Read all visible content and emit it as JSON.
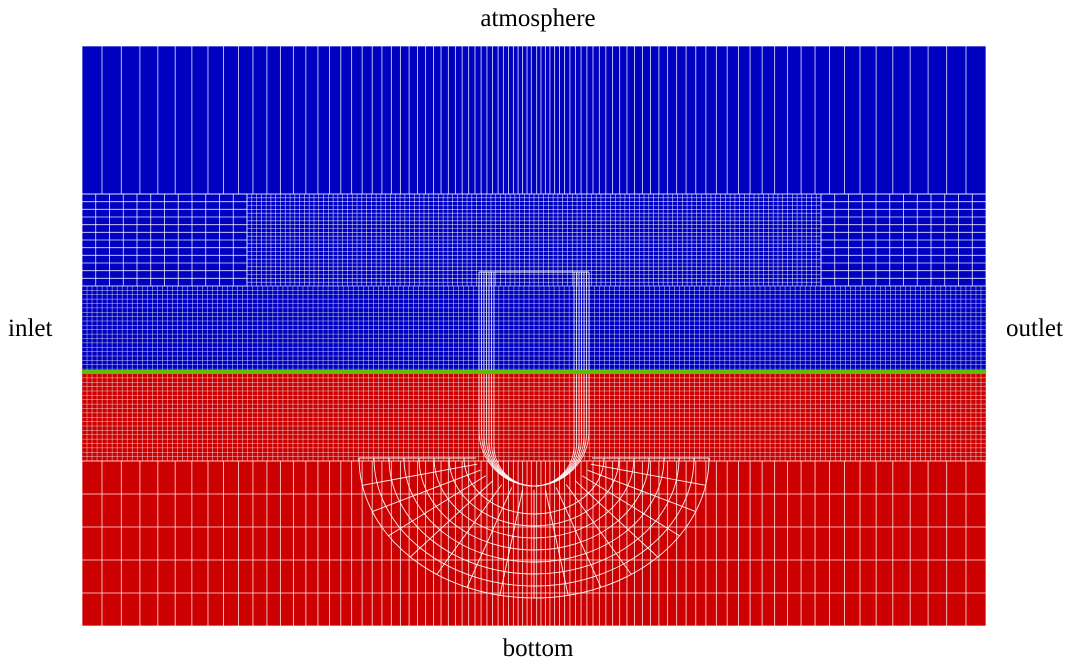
{
  "boundaries": {
    "top": "atmosphere",
    "bottom": "bottom",
    "left": "inlet",
    "right": "outlet"
  },
  "colors": {
    "air_phase": "#0000c0",
    "water_phase": "#cc0000",
    "free_surface": "#5cc000",
    "grid_lines": "#ffffff"
  }
}
